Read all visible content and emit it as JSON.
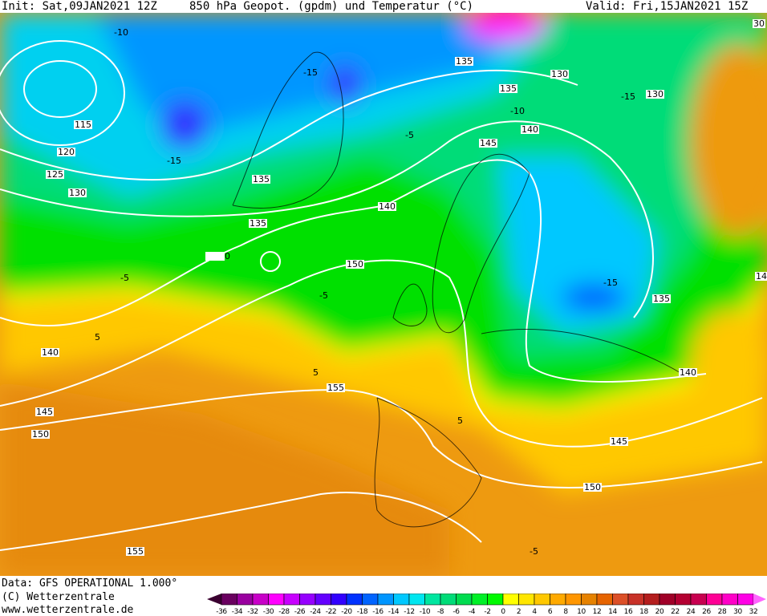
{
  "header": {
    "init": "Init: Sat,09JAN2021 12Z",
    "title": "850 hPa Geopot. (gpdm) und Temperatur (°C)",
    "valid": "Valid: Fri,15JAN2021 15Z"
  },
  "footer": {
    "data": "Data: GFS OPERATIONAL 1.000°",
    "copyright": "(C) Wetterzentrale",
    "url": "www.wetterzentrale.de"
  },
  "geopotential_labels": [
    "115",
    "120",
    "125",
    "130",
    "135",
    "135",
    "140",
    "150",
    "140",
    "145",
    "150",
    "155",
    "155",
    "135",
    "130",
    "135",
    "130",
    "140",
    "145",
    "135",
    "140",
    "145",
    "150",
    "30",
    "14"
  ],
  "temperature_labels": [
    "-10",
    "-15",
    "-15",
    "-5",
    "0",
    "5",
    "-5",
    "-10",
    "-15",
    "-15",
    "5",
    "-5",
    "5",
    "-5"
  ],
  "legend": {
    "ticks": [
      "-36",
      "-34",
      "-32",
      "-30",
      "-28",
      "-26",
      "-24",
      "-22",
      "-20",
      "-18",
      "-16",
      "-14",
      "-12",
      "-10",
      "-8",
      "-6",
      "-4",
      "-2",
      "0",
      "2",
      "4",
      "6",
      "8",
      "10",
      "12",
      "14",
      "16",
      "18",
      "20",
      "22",
      "24",
      "26",
      "28",
      "30",
      "32"
    ],
    "below_color": "#3a0030",
    "above_color": "#ff64ff",
    "colors": [
      "#6a0060",
      "#9a00a0",
      "#c800c8",
      "#ff00ff",
      "#c800ff",
      "#9600ff",
      "#6400ff",
      "#3200ff",
      "#0032ff",
      "#0064ff",
      "#0096ff",
      "#00c8ff",
      "#00e6f0",
      "#00e6a0",
      "#00dc78",
      "#00dc50",
      "#00f028",
      "#00fa00",
      "#ffff00",
      "#ffe600",
      "#ffc800",
      "#ffaa00",
      "#ff9600",
      "#e68200",
      "#e66400",
      "#dc5028",
      "#c83228",
      "#b41e1e",
      "#a00028",
      "#b40032",
      "#c80050",
      "#ff0096",
      "#ff00c8",
      "#ff00e6"
    ]
  }
}
